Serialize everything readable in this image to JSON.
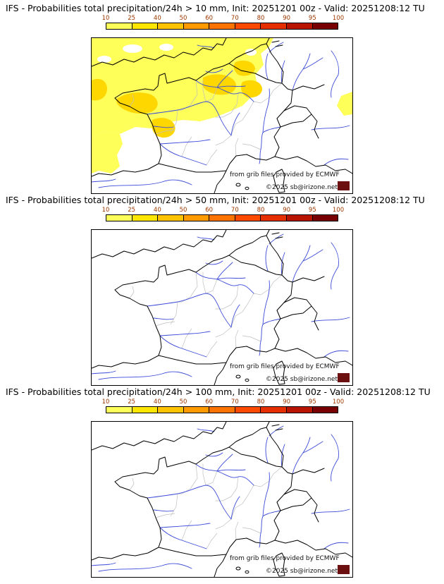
{
  "panels": [
    {
      "id": "gt-10mm",
      "title": "IFS - Probabilities total precipitation/24h > 10 mm, Init: 20251201 00z - Valid: 20251208:12 TU",
      "overlay": true
    },
    {
      "id": "gt-50mm",
      "title": "IFS - Probabilities total precipitation/24h > 50 mm, Init: 20251201 00z - Valid: 20251208:12 TU",
      "overlay": false
    },
    {
      "id": "gt-100mm",
      "title": "IFS - Probabilities total precipitation/24h > 100 mm, Init: 20251201 00z - Valid: 20251208:12 TU",
      "overlay": false
    }
  ],
  "colorbar": {
    "tick_labels": [
      "10",
      "25",
      "40",
      "50",
      "60",
      "70",
      "80",
      "90",
      "95",
      "100"
    ],
    "segment_colors": [
      "#ffff5a",
      "#ffe600",
      "#ffc300",
      "#ff9b00",
      "#ff7300",
      "#ff4a00",
      "#e62f00",
      "#b81400",
      "#780000"
    ],
    "label_color": "#a03800"
  },
  "map": {
    "credit_line": "from grib files provided by ECMWF",
    "copyright_line": "©2025 sb@irizone.net",
    "colors": {
      "coast": "#000000",
      "rivers": "#3b4bd8",
      "admin": "#bfbfbf",
      "overlay_low": "#ffff5a",
      "overlay_mid": "#ffd700",
      "logo_box": "#6b0f10"
    }
  }
}
